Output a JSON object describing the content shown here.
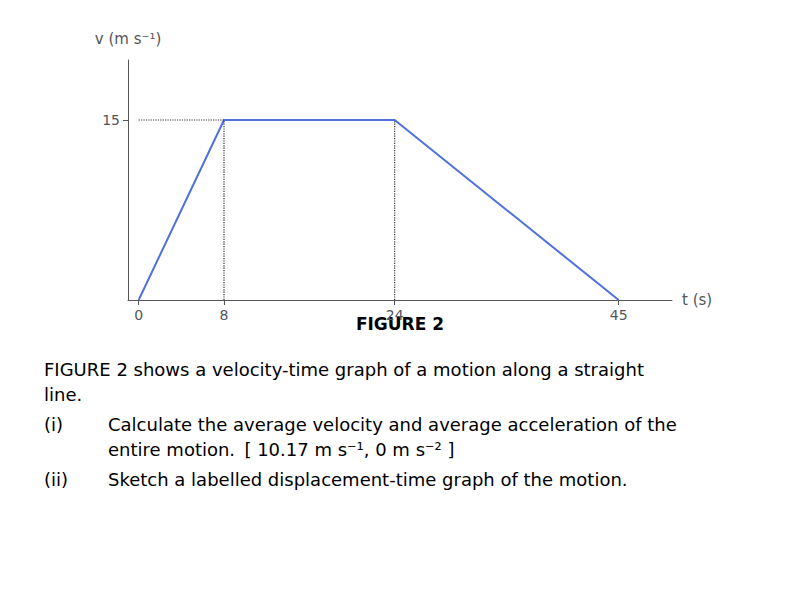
{
  "chart_data": {
    "type": "line",
    "x": [
      0,
      8,
      24,
      45
    ],
    "values": [
      0,
      15,
      15,
      0
    ],
    "xlim": [
      -1,
      50
    ],
    "ylim": [
      0,
      20
    ],
    "xticks": [
      0,
      8,
      24,
      45
    ],
    "yticks": [
      15
    ],
    "x_label": "t (s)",
    "y_label": "v (m s⁻¹)",
    "grid": false,
    "guides": [
      {
        "x": [
          8,
          8
        ],
        "values": [
          0,
          15
        ],
        "line_style": "dotted"
      },
      {
        "x": [
          24,
          24
        ],
        "values": [
          0,
          15
        ],
        "line_style": "dotted"
      },
      {
        "x": [
          0,
          8
        ],
        "values": [
          15,
          15
        ],
        "line_style": "dotted"
      }
    ],
    "caption": "FIGURE 2",
    "text": [
      {
        "lines": [
          "FIGURE 2 shows a velocity-time graph of a motion along a straight",
          "line."
        ]
      },
      {
        "label": "(i)",
        "lines": [
          "Calculate the average velocity and average acceleration of the",
          "entire motion.  [ 10.17 m s⁻¹, 0 m s⁻² ]"
        ]
      },
      {
        "label": "(ii)",
        "lines": [
          "Sketch a labelled displacement-time graph of the motion."
        ]
      }
    ]
  }
}
